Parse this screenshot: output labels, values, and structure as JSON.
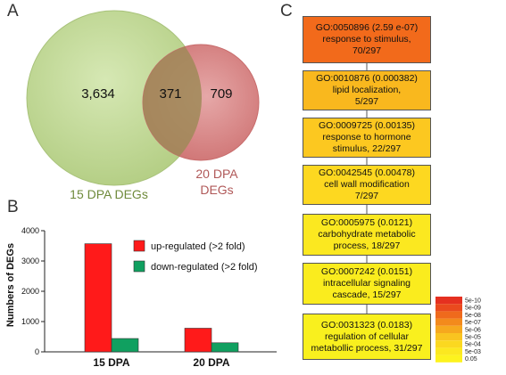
{
  "panels": {
    "a": "A",
    "b": "B",
    "c": "C"
  },
  "venn": {
    "left_only": "3,634",
    "overlap": "371",
    "right_only": "709",
    "left_label": "15 DPA DEGs",
    "right_label_line1": "20 DPA",
    "right_label_line2": "DEGs",
    "colors": {
      "left": "#c5dc9c",
      "right": "#d98a8a",
      "left_text": "#6e8a3a",
      "right_text": "#b05858"
    }
  },
  "chart_data": {
    "type": "bar",
    "categories": [
      "15 DPA",
      "20 DPA"
    ],
    "series": [
      {
        "name": "up-regulated (>2 fold)",
        "values": [
          3570,
          780
        ],
        "color": "#ff1a1a"
      },
      {
        "name": "down-regulated (>2 fold)",
        "values": [
          440,
          300
        ],
        "color": "#10a060"
      }
    ],
    "ylabel": "Numbers of DEGs",
    "ylim": [
      0,
      4000
    ],
    "yticks": [
      0,
      1000,
      2000,
      3000,
      4000
    ],
    "legend": "top-right"
  },
  "go_terms": [
    {
      "id": "GO:0050896 (2.59 e-07)",
      "lines": [
        "response to stimulus,",
        "70/297"
      ],
      "color": "#f26a1b"
    },
    {
      "id": "GO:0010876 (0.000382)",
      "lines": [
        "lipid localization,",
        "5/297"
      ],
      "color": "#f9b81e"
    },
    {
      "id": "GO:0009725 (0.00135)",
      "lines": [
        "response to hormone",
        "stimulus, 22/297"
      ],
      "color": "#fcc820"
    },
    {
      "id": "GO:0042545 (0.00478)",
      "lines": [
        "cell wall modification",
        "7/297"
      ],
      "color": "#fdd820"
    },
    {
      "id": "GO:0005975 (0.0121)",
      "lines": [
        "carbohydrate metabolic",
        "process, 18/297"
      ],
      "color": "#fbe820"
    },
    {
      "id": "GO:0007242 (0.0151)",
      "lines": [
        "intracellular signaling",
        "cascade, 15/297"
      ],
      "color": "#faec1e"
    },
    {
      "id": "GO:0031323 (0.0183)",
      "lines": [
        "regulation of cellular",
        "metabollic process, 31/297"
      ],
      "color": "#f9f01e"
    }
  ],
  "scale_legend": {
    "labels": [
      "5e-10",
      "5e-09",
      "5e-08",
      "5e-07",
      "5e-06",
      "5e-05",
      "5e-04",
      "5e-03",
      "0.05"
    ],
    "colors": [
      "#e53020",
      "#ea4a1e",
      "#ef6a1c",
      "#f38a1c",
      "#f6a81e",
      "#f9c420",
      "#fbd820",
      "#fce820",
      "#fdf31e"
    ]
  }
}
